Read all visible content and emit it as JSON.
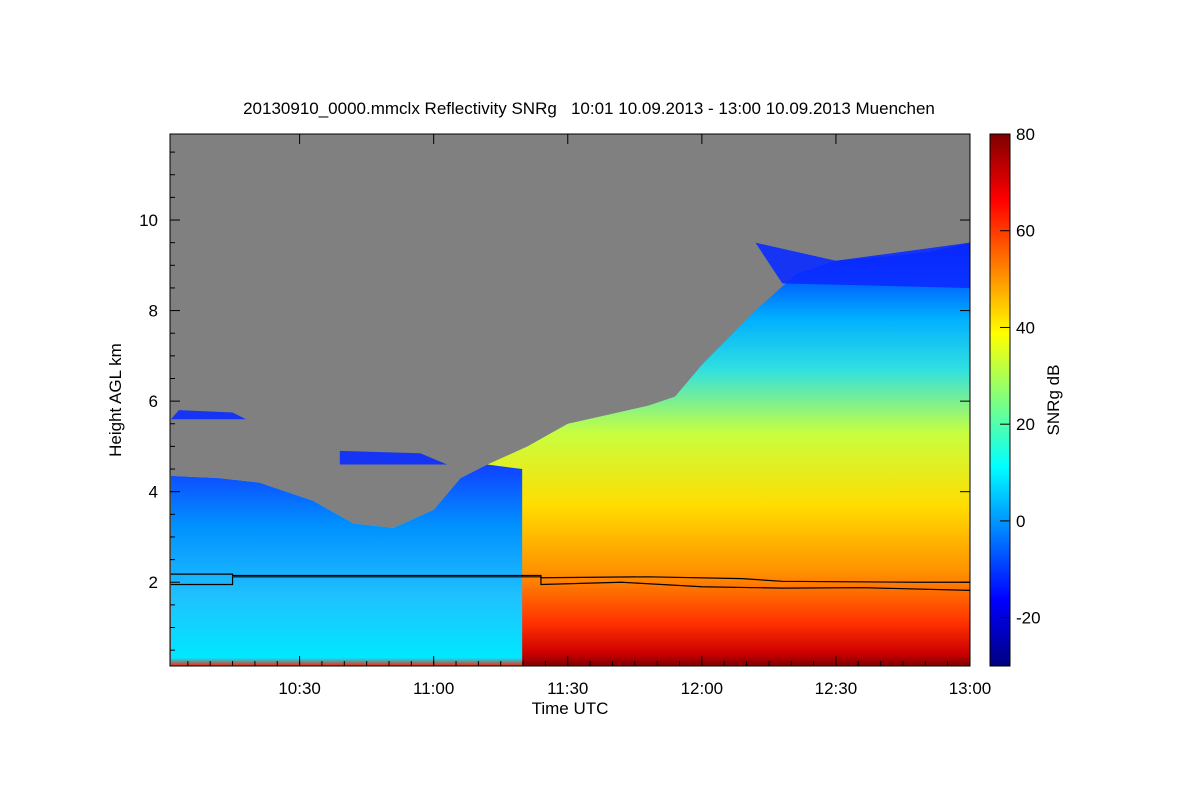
{
  "chart_data": {
    "type": "heatmap",
    "title": "20130910_0000.mmclx Reflectivity SNRg   10:01 10.09.2013 - 13:00 10.09.2013 Muenchen",
    "xlabel": "Time UTC",
    "ylabel": "Height AGL km",
    "colorbar_label": "SNRg dB",
    "x_range_hours": [
      10.0167,
      13.0
    ],
    "y_range_km": [
      0.15,
      11.9
    ],
    "x_ticks": [
      {
        "value": 10.5,
        "label": "10:30"
      },
      {
        "value": 11.0,
        "label": "11:00"
      },
      {
        "value": 11.5,
        "label": "11:30"
      },
      {
        "value": 12.0,
        "label": "12:00"
      },
      {
        "value": 12.5,
        "label": "12:30"
      },
      {
        "value": 13.0,
        "label": "13:00"
      }
    ],
    "y_ticks": [
      {
        "value": 2,
        "label": "2"
      },
      {
        "value": 4,
        "label": "4"
      },
      {
        "value": 6,
        "label": "6"
      },
      {
        "value": 8,
        "label": "8"
      },
      {
        "value": 10,
        "label": "10"
      }
    ],
    "colorbar_range": [
      -30,
      80
    ],
    "colorbar_ticks": [
      {
        "value": 80,
        "label": "80"
      },
      {
        "value": 60,
        "label": "60"
      },
      {
        "value": 40,
        "label": "40"
      },
      {
        "value": 20,
        "label": "20"
      },
      {
        "value": 0,
        "label": "0"
      },
      {
        "value": -20,
        "label": "-20"
      }
    ],
    "colormap": [
      "#00007f",
      "#0000ff",
      "#007fff",
      "#00ffff",
      "#7fff7f",
      "#ffff00",
      "#ff7f00",
      "#ff0000",
      "#7f0000"
    ],
    "no_signal_color": "#808080",
    "signal_top_km": [
      {
        "t": 10.02,
        "h": 4.35
      },
      {
        "t": 10.2,
        "h": 4.3
      },
      {
        "t": 10.35,
        "h": 4.2
      },
      {
        "t": 10.55,
        "h": 3.8
      },
      {
        "t": 10.7,
        "h": 3.3
      },
      {
        "t": 10.85,
        "h": 3.2
      },
      {
        "t": 11.0,
        "h": 3.6
      },
      {
        "t": 11.1,
        "h": 4.3
      },
      {
        "t": 11.2,
        "h": 4.6
      },
      {
        "t": 11.35,
        "h": 5.0
      },
      {
        "t": 11.5,
        "h": 5.5
      },
      {
        "t": 11.65,
        "h": 5.7
      },
      {
        "t": 11.8,
        "h": 5.9
      },
      {
        "t": 11.9,
        "h": 6.1
      },
      {
        "t": 12.0,
        "h": 6.8
      },
      {
        "t": 12.1,
        "h": 7.4
      },
      {
        "t": 12.2,
        "h": 8.0
      },
      {
        "t": 12.35,
        "h": 8.8
      },
      {
        "t": 12.5,
        "h": 9.1
      },
      {
        "t": 12.7,
        "h": 9.2
      },
      {
        "t": 12.85,
        "h": 9.3
      },
      {
        "t": 13.0,
        "h": 9.5
      }
    ],
    "boundary_layer_lines_km": [
      [
        {
          "t": 10.02,
          "h": 2.18
        },
        {
          "t": 10.25,
          "h": 2.18
        },
        {
          "t": 10.25,
          "h": 2.15
        },
        {
          "t": 11.4,
          "h": 2.15
        },
        {
          "t": 11.4,
          "h": 2.1
        },
        {
          "t": 11.8,
          "h": 2.12
        },
        {
          "t": 12.15,
          "h": 2.08
        },
        {
          "t": 12.3,
          "h": 2.02
        },
        {
          "t": 12.8,
          "h": 2.0
        },
        {
          "t": 13.0,
          "h": 2.0
        }
      ],
      [
        {
          "t": 10.02,
          "h": 1.95
        },
        {
          "t": 10.25,
          "h": 1.95
        },
        {
          "t": 10.25,
          "h": 2.12
        },
        {
          "t": 11.4,
          "h": 2.12
        },
        {
          "t": 11.4,
          "h": 1.95
        },
        {
          "t": 11.7,
          "h": 2.0
        },
        {
          "t": 12.0,
          "h": 1.9
        },
        {
          "t": 12.3,
          "h": 1.87
        },
        {
          "t": 12.6,
          "h": 1.88
        },
        {
          "t": 13.0,
          "h": 1.82
        }
      ]
    ]
  }
}
